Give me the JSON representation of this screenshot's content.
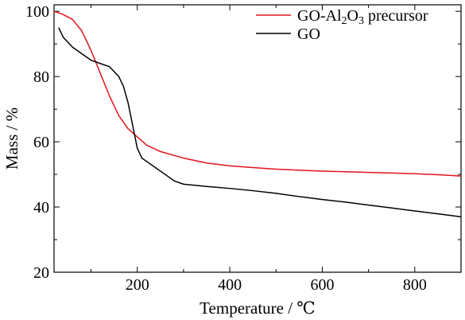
{
  "chart_data": {
    "type": "line",
    "title": "",
    "xlabel": "Temperature / ℃",
    "ylabel": "Mass / %",
    "xlim": [
      20,
      900
    ],
    "ylim": [
      20,
      102
    ],
    "x_ticks": [
      200,
      400,
      600,
      800
    ],
    "y_ticks": [
      20,
      40,
      60,
      80,
      100
    ],
    "x_minor_ticks": [
      100,
      300,
      500,
      700
    ],
    "y_minor_ticks": [
      30,
      50,
      70,
      90
    ],
    "grid": false,
    "legend_placement": "top-right",
    "series": [
      {
        "name": "GO-Al2O3 precursor",
        "legend_parts": [
          "GO-Al",
          "2",
          "O",
          "3",
          " precursor"
        ],
        "color": "#e0141e",
        "x": [
          20,
          40,
          60,
          80,
          100,
          120,
          140,
          160,
          180,
          200,
          220,
          250,
          300,
          350,
          400,
          450,
          500,
          550,
          600,
          650,
          700,
          750,
          800,
          850,
          900
        ],
        "y": [
          100,
          99,
          97.5,
          94,
          88,
          81,
          74,
          68,
          64,
          61.5,
          59,
          57,
          55,
          53.5,
          52.6,
          52.1,
          51.6,
          51.3,
          51,
          50.8,
          50.6,
          50.4,
          50.2,
          49.9,
          49.5
        ]
      },
      {
        "name": "GO",
        "legend_parts": [
          "GO"
        ],
        "color": "#000000",
        "x": [
          30,
          40,
          60,
          80,
          100,
          120,
          140,
          160,
          170,
          180,
          190,
          200,
          210,
          220,
          240,
          260,
          280,
          300,
          350,
          400,
          450,
          500,
          550,
          600,
          650,
          700,
          750,
          800,
          850,
          900
        ],
        "y": [
          95,
          92,
          89,
          87,
          85,
          84,
          83,
          80,
          77,
          72,
          65,
          58,
          55,
          54,
          52,
          50,
          48,
          47,
          46.3,
          45.7,
          45,
          44.2,
          43.2,
          42.3,
          41.5,
          40.6,
          39.7,
          38.8,
          37.9,
          37
        ]
      }
    ]
  }
}
